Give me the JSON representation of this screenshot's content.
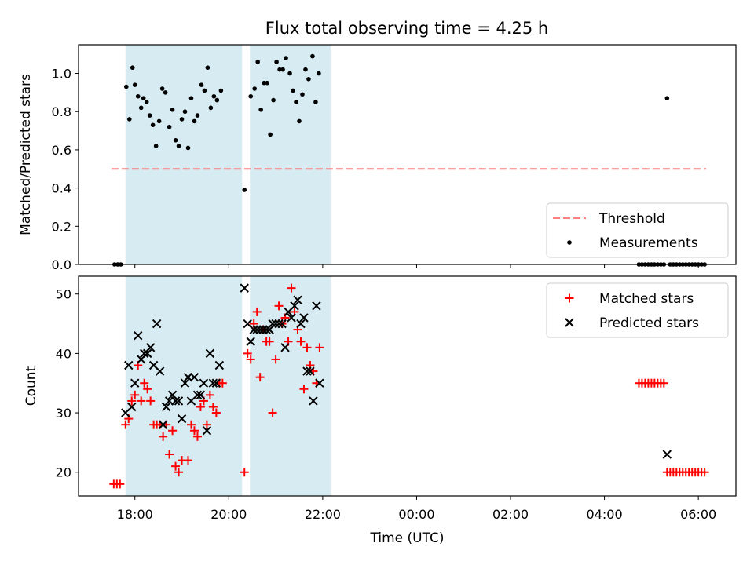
{
  "title": "Flux total observing time = 4.25 h",
  "chart_data": [
    {
      "type": "scatter",
      "panel": "top",
      "ylabel": "Matched/Predicted stars",
      "ylim": [
        0,
        1.15
      ],
      "yticks": [
        "0.0",
        "0.2",
        "0.4",
        "0.6",
        "0.8",
        "1.0"
      ],
      "shaded_intervals": [
        [
          "17:48",
          "20:17"
        ],
        [
          "20:27",
          "22:10"
        ]
      ],
      "threshold": {
        "name": "Threshold",
        "y": 0.5,
        "x_range": [
          "17:30",
          "06:10"
        ],
        "color": "#ff7f7f"
      },
      "legend": {
        "placement": "lower right",
        "entries": [
          "Threshold",
          "Measurements"
        ]
      },
      "series": [
        {
          "name": "Measurements",
          "color": "#000000",
          "marker": "dot",
          "points": [
            [
              "17:34",
              0.0
            ],
            [
              "17:38",
              0.0
            ],
            [
              "17:42",
              0.0
            ],
            [
              "17:49",
              0.93
            ],
            [
              "17:53",
              0.76
            ],
            [
              "17:57",
              1.03
            ],
            [
              "18:00",
              0.94
            ],
            [
              "18:04",
              0.88
            ],
            [
              "18:08",
              0.82
            ],
            [
              "18:11",
              0.87
            ],
            [
              "18:15",
              0.85
            ],
            [
              "18:19",
              0.78
            ],
            [
              "18:23",
              0.73
            ],
            [
              "18:27",
              0.62
            ],
            [
              "18:31",
              0.75
            ],
            [
              "18:35",
              0.92
            ],
            [
              "18:39",
              0.9
            ],
            [
              "18:44",
              0.72
            ],
            [
              "18:48",
              0.81
            ],
            [
              "18:52",
              0.65
            ],
            [
              "18:56",
              0.62
            ],
            [
              "19:00",
              0.76
            ],
            [
              "19:04",
              0.8
            ],
            [
              "19:08",
              0.61
            ],
            [
              "19:12",
              0.87
            ],
            [
              "19:16",
              0.75
            ],
            [
              "19:20",
              0.78
            ],
            [
              "19:25",
              0.94
            ],
            [
              "19:29",
              0.91
            ],
            [
              "19:33",
              1.03
            ],
            [
              "19:37",
              0.82
            ],
            [
              "19:41",
              0.88
            ],
            [
              "19:45",
              0.86
            ],
            [
              "19:50",
              0.91
            ],
            [
              "20:20",
              0.39
            ],
            [
              "20:28",
              0.88
            ],
            [
              "20:33",
              0.92
            ],
            [
              "20:37",
              1.06
            ],
            [
              "20:41",
              0.81
            ],
            [
              "20:45",
              0.95
            ],
            [
              "20:49",
              0.95
            ],
            [
              "20:53",
              0.68
            ],
            [
              "20:57",
              0.86
            ],
            [
              "21:01",
              1.06
            ],
            [
              "21:05",
              1.02
            ],
            [
              "21:09",
              1.02
            ],
            [
              "21:13",
              1.08
            ],
            [
              "21:18",
              1.0
            ],
            [
              "21:22",
              0.91
            ],
            [
              "21:26",
              0.85
            ],
            [
              "21:30",
              0.75
            ],
            [
              "21:34",
              0.89
            ],
            [
              "21:38",
              1.02
            ],
            [
              "21:42",
              0.97
            ],
            [
              "21:47",
              1.09
            ],
            [
              "21:51",
              0.85
            ],
            [
              "21:55",
              1.0
            ],
            [
              "04:44",
              0.0
            ],
            [
              "04:48",
              0.0
            ],
            [
              "04:52",
              0.0
            ],
            [
              "04:56",
              0.0
            ],
            [
              "05:00",
              0.0
            ],
            [
              "05:04",
              0.0
            ],
            [
              "05:08",
              0.0
            ],
            [
              "05:12",
              0.0
            ],
            [
              "05:16",
              0.0
            ],
            [
              "05:20",
              0.87
            ],
            [
              "05:24",
              0.0
            ],
            [
              "05:28",
              0.0
            ],
            [
              "05:32",
              0.0
            ],
            [
              "05:36",
              0.0
            ],
            [
              "05:40",
              0.0
            ],
            [
              "05:44",
              0.0
            ],
            [
              "05:48",
              0.0
            ],
            [
              "05:52",
              0.0
            ],
            [
              "05:56",
              0.0
            ],
            [
              "06:00",
              0.0
            ],
            [
              "06:04",
              0.0
            ],
            [
              "06:08",
              0.0
            ]
          ]
        }
      ]
    },
    {
      "type": "scatter",
      "panel": "bottom",
      "xlabel": "Time (UTC)",
      "ylabel": "Count",
      "ylim": [
        16,
        53
      ],
      "yticks": [
        "20",
        "30",
        "40",
        "50"
      ],
      "xticks": [
        "18:00",
        "20:00",
        "22:00",
        "00:00",
        "02:00",
        "04:00",
        "06:00"
      ],
      "shaded_intervals": [
        [
          "17:48",
          "20:17"
        ],
        [
          "20:27",
          "22:10"
        ]
      ],
      "legend": {
        "placement": "upper right",
        "entries": [
          "Matched stars",
          "Predicted stars"
        ]
      },
      "series": [
        {
          "name": "Matched stars",
          "color": "#ff0000",
          "marker": "plus",
          "points": [
            [
              "17:33",
              18
            ],
            [
              "17:37",
              18
            ],
            [
              "17:41",
              18
            ],
            [
              "17:48",
              28
            ],
            [
              "17:52",
              29
            ],
            [
              "17:56",
              32
            ],
            [
              "18:00",
              33
            ],
            [
              "18:04",
              38
            ],
            [
              "18:08",
              32
            ],
            [
              "18:12",
              35
            ],
            [
              "18:16",
              34
            ],
            [
              "18:20",
              32
            ],
            [
              "18:24",
              28
            ],
            [
              "18:28",
              28
            ],
            [
              "18:32",
              28
            ],
            [
              "18:36",
              26
            ],
            [
              "18:40",
              28
            ],
            [
              "18:44",
              23
            ],
            [
              "18:48",
              27
            ],
            [
              "18:52",
              21
            ],
            [
              "18:56",
              20
            ],
            [
              "19:00",
              22
            ],
            [
              "19:08",
              22
            ],
            [
              "19:12",
              28
            ],
            [
              "19:16",
              27
            ],
            [
              "19:20",
              26
            ],
            [
              "19:24",
              31
            ],
            [
              "19:28",
              32
            ],
            [
              "19:32",
              28
            ],
            [
              "19:36",
              33
            ],
            [
              "19:40",
              31
            ],
            [
              "19:44",
              30
            ],
            [
              "19:48",
              35
            ],
            [
              "19:52",
              35
            ],
            [
              "20:20",
              20
            ],
            [
              "20:24",
              40
            ],
            [
              "20:28",
              39
            ],
            [
              "20:32",
              45
            ],
            [
              "20:36",
              47
            ],
            [
              "20:40",
              36
            ],
            [
              "20:44",
              44
            ],
            [
              "20:48",
              42
            ],
            [
              "20:52",
              42
            ],
            [
              "20:56",
              30
            ],
            [
              "21:00",
              39
            ],
            [
              "21:04",
              48
            ],
            [
              "21:08",
              45
            ],
            [
              "21:12",
              46
            ],
            [
              "21:16",
              42
            ],
            [
              "21:20",
              51
            ],
            [
              "21:24",
              47
            ],
            [
              "21:28",
              44
            ],
            [
              "21:32",
              42
            ],
            [
              "21:36",
              34
            ],
            [
              "21:40",
              41
            ],
            [
              "21:44",
              38
            ],
            [
              "21:48",
              37
            ],
            [
              "21:52",
              35
            ],
            [
              "21:56",
              41
            ],
            [
              "04:44",
              35
            ],
            [
              "04:48",
              35
            ],
            [
              "04:52",
              35
            ],
            [
              "04:56",
              35
            ],
            [
              "05:00",
              35
            ],
            [
              "05:04",
              35
            ],
            [
              "05:08",
              35
            ],
            [
              "05:12",
              35
            ],
            [
              "05:16",
              35
            ],
            [
              "05:20",
              20
            ],
            [
              "05:24",
              20
            ],
            [
              "05:28",
              20
            ],
            [
              "05:32",
              20
            ],
            [
              "05:36",
              20
            ],
            [
              "05:40",
              20
            ],
            [
              "05:44",
              20
            ],
            [
              "05:48",
              20
            ],
            [
              "05:52",
              20
            ],
            [
              "05:56",
              20
            ],
            [
              "06:00",
              20
            ],
            [
              "06:04",
              20
            ],
            [
              "06:08",
              20
            ]
          ]
        },
        {
          "name": "Predicted stars",
          "color": "#000000",
          "marker": "x",
          "points": [
            [
              "17:48",
              30
            ],
            [
              "17:52",
              38
            ],
            [
              "17:56",
              31
            ],
            [
              "18:00",
              35
            ],
            [
              "18:04",
              43
            ],
            [
              "18:08",
              39
            ],
            [
              "18:12",
              40
            ],
            [
              "18:16",
              40
            ],
            [
              "18:20",
              41
            ],
            [
              "18:24",
              38
            ],
            [
              "18:28",
              45
            ],
            [
              "18:32",
              37
            ],
            [
              "18:36",
              28
            ],
            [
              "18:40",
              31
            ],
            [
              "18:44",
              32
            ],
            [
              "18:48",
              33
            ],
            [
              "18:52",
              32
            ],
            [
              "18:56",
              32
            ],
            [
              "19:00",
              29
            ],
            [
              "19:04",
              35
            ],
            [
              "19:08",
              36
            ],
            [
              "19:12",
              32
            ],
            [
              "19:16",
              36
            ],
            [
              "19:20",
              33
            ],
            [
              "19:24",
              33
            ],
            [
              "19:28",
              35
            ],
            [
              "19:32",
              27
            ],
            [
              "19:36",
              40
            ],
            [
              "19:40",
              35
            ],
            [
              "19:44",
              35
            ],
            [
              "19:48",
              38
            ],
            [
              "20:20",
              51
            ],
            [
              "20:24",
              45
            ],
            [
              "20:28",
              42
            ],
            [
              "20:32",
              44
            ],
            [
              "20:36",
              44
            ],
            [
              "20:40",
              44
            ],
            [
              "20:44",
              44
            ],
            [
              "20:48",
              44
            ],
            [
              "20:52",
              44
            ],
            [
              "20:56",
              45
            ],
            [
              "21:00",
              45
            ],
            [
              "21:04",
              45
            ],
            [
              "21:08",
              45
            ],
            [
              "21:12",
              41
            ],
            [
              "21:16",
              47
            ],
            [
              "21:20",
              46
            ],
            [
              "21:24",
              48
            ],
            [
              "21:28",
              49
            ],
            [
              "21:32",
              45
            ],
            [
              "21:36",
              46
            ],
            [
              "21:40",
              37
            ],
            [
              "21:44",
              37
            ],
            [
              "21:48",
              32
            ],
            [
              "21:52",
              48
            ],
            [
              "21:56",
              35
            ],
            [
              "05:20",
              23
            ]
          ]
        }
      ]
    }
  ]
}
